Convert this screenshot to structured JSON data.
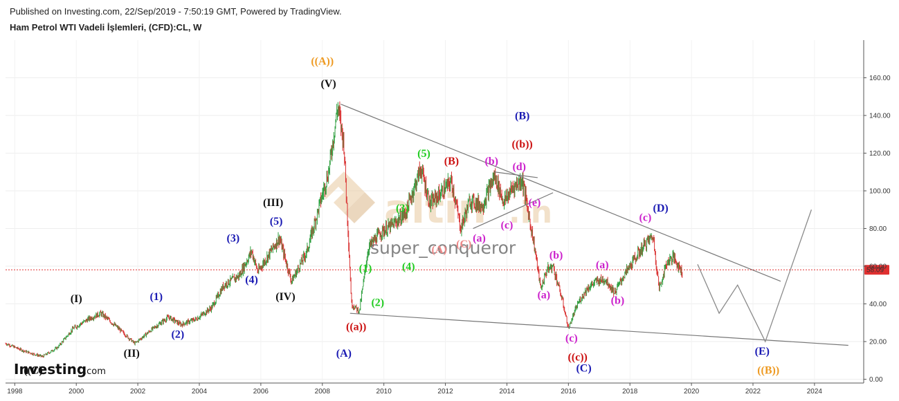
{
  "header": {
    "published": "Published on Investing.com, 22/Sep/2019 - 7:50:19 GMT, Powered by TradingView.",
    "symbol": "Ham Petrol WTI Vadeli İşlemleri, (CFD):CL, W"
  },
  "brand": {
    "investing": "Investing",
    "investing_suffix": ".com",
    "watermark_main": "altin",
    "watermark_suffix": ".in",
    "author": "super_conqueror"
  },
  "colors": {
    "candle_up": "#2e9e3e",
    "candle_down": "#d93030",
    "price_line": "#e03030",
    "trend_line": "#777777",
    "forecast_line": "#8a8a8a",
    "watermark": "#e8c9a0"
  },
  "chart_data": {
    "type": "line",
    "x_axis": {
      "ticks": [
        "1998",
        "2000",
        "2002",
        "2004",
        "2006",
        "2008",
        "2010",
        "2012",
        "2014",
        "2016",
        "2018",
        "2020",
        "2022",
        "2024"
      ],
      "range": [
        1997.7,
        2025.6
      ]
    },
    "y_axis": {
      "ticks": [
        "160.00",
        "140.00",
        "120.00",
        "100.00",
        "80.00",
        "60.00",
        "40.00",
        "20.00",
        "0.00"
      ],
      "range": [
        -2,
        180
      ],
      "position": "right"
    },
    "last_price": "58.09",
    "series": [
      {
        "x": [
          1997.7,
          1998.3,
          1998.9,
          1999.4,
          1999.9,
          2000.4,
          2000.8,
          2001.3,
          2001.9,
          2002.5,
          2003.0,
          2003.4,
          2003.9,
          2004.4,
          2004.8,
          2005.3,
          2005.7,
          2005.9,
          2006.6,
          2007.0,
          2007.5,
          2007.9,
          2008.2,
          2008.5,
          2008.7,
          2008.95,
          2009.2,
          2009.5,
          2009.9,
          2010.3,
          2010.7,
          2011.2,
          2011.5,
          2011.8,
          2012.2,
          2012.5,
          2012.8,
          2013.2,
          2013.6,
          2013.9,
          2014.2,
          2014.5,
          2014.9,
          2015.1,
          2015.3,
          2015.5,
          2015.8,
          2016.0,
          2016.3,
          2016.6,
          2016.9,
          2017.2,
          2017.5,
          2017.8,
          2018.2,
          2018.5,
          2018.75,
          2018.95,
          2019.2,
          2019.4,
          2019.7
        ],
        "y": [
          19,
          15,
          12,
          17,
          27,
          32,
          35,
          28,
          19,
          27,
          33,
          29,
          32,
          38,
          50,
          55,
          68,
          57,
          75,
          52,
          68,
          92,
          110,
          145,
          125,
          40,
          36,
          70,
          78,
          82,
          88,
          112,
          93,
          98,
          105,
          80,
          95,
          92,
          108,
          94,
          102,
          106,
          70,
          48,
          58,
          60,
          42,
          27,
          40,
          48,
          52,
          53,
          46,
          55,
          65,
          72,
          76,
          48,
          62,
          65,
          57
        ]
      }
    ],
    "forecast": {
      "x": [
        2020.2,
        2020.9,
        2021.5,
        2022.4,
        2023.9
      ],
      "y": [
        61,
        35,
        50,
        20,
        90
      ]
    },
    "trend_lines": [
      {
        "x": [
          2008.6,
          2022.9
        ],
        "y": [
          146,
          52
        ]
      },
      {
        "x": [
          2008.9,
          2025.1
        ],
        "y": [
          35,
          18
        ]
      },
      {
        "x": [
          2012.9,
          2015.5
        ],
        "y": [
          80,
          99
        ]
      },
      {
        "x": [
          2013.6,
          2015.0
        ],
        "y": [
          110,
          107
        ]
      }
    ],
    "annotations": [
      {
        "text": "((A))",
        "x": 2008.0,
        "y": 167,
        "color": "#ee9a22"
      },
      {
        "text": "(V)",
        "x": 2008.2,
        "y": 155,
        "color": "#111111"
      },
      {
        "text": "(III)",
        "x": 2006.4,
        "y": 92,
        "color": "#111111"
      },
      {
        "text": "(5)",
        "x": 2006.5,
        "y": 82,
        "color": "#1a1ab3"
      },
      {
        "text": "(3)",
        "x": 2005.1,
        "y": 73,
        "color": "#1a1ab3"
      },
      {
        "text": "(4)",
        "x": 2005.7,
        "y": 51,
        "color": "#1a1ab3"
      },
      {
        "text": "(IV)",
        "x": 2006.8,
        "y": 42,
        "color": "#111111"
      },
      {
        "text": "(I)",
        "x": 2000.0,
        "y": 41,
        "color": "#111111"
      },
      {
        "text": "(1)",
        "x": 2002.6,
        "y": 42,
        "color": "#1a1ab3"
      },
      {
        "text": "(2)",
        "x": 2003.3,
        "y": 22,
        "color": "#1a1ab3"
      },
      {
        "text": "(II)",
        "x": 2001.8,
        "y": 12,
        "color": "#111111"
      },
      {
        "text": "((C)",
        "x": 1998.6,
        "y": 3,
        "color": "#111111"
      },
      {
        "text": "(1)",
        "x": 2009.4,
        "y": 57,
        "color": "#22cc22"
      },
      {
        "text": "(2)",
        "x": 2009.8,
        "y": 39,
        "color": "#22cc22"
      },
      {
        "text": "(3)",
        "x": 2010.6,
        "y": 89,
        "color": "#22cc22"
      },
      {
        "text": "(4)",
        "x": 2010.8,
        "y": 58,
        "color": "#22cc22"
      },
      {
        "text": "(5)",
        "x": 2011.3,
        "y": 118,
        "color": "#22cc22"
      },
      {
        "text": "((a))",
        "x": 2009.1,
        "y": 26,
        "color": "#cc1111"
      },
      {
        "text": "(A)",
        "x": 2008.7,
        "y": 12,
        "color": "#1a1ab3"
      },
      {
        "text": "(B)",
        "x": 2012.2,
        "y": 114,
        "color": "#cc1111"
      },
      {
        "text": "(A)",
        "x": 2011.8,
        "y": 67,
        "color": "#ee8888"
      },
      {
        "text": "(C)",
        "x": 2012.6,
        "y": 70,
        "color": "#ee8888"
      },
      {
        "text": "(a)",
        "x": 2013.1,
        "y": 73,
        "color": "#cc22cc"
      },
      {
        "text": "(b)",
        "x": 2013.5,
        "y": 114,
        "color": "#cc22cc"
      },
      {
        "text": "(c)",
        "x": 2014.0,
        "y": 80,
        "color": "#cc22cc"
      },
      {
        "text": "(d)",
        "x": 2014.4,
        "y": 111,
        "color": "#cc22cc"
      },
      {
        "text": "(e)",
        "x": 2014.9,
        "y": 92,
        "color": "#cc22cc"
      },
      {
        "text": "(B)",
        "x": 2014.5,
        "y": 138,
        "color": "#1a1ab3"
      },
      {
        "text": "((b))",
        "x": 2014.5,
        "y": 123,
        "color": "#cc1111"
      },
      {
        "text": "(b)",
        "x": 2015.6,
        "y": 64,
        "color": "#cc22cc"
      },
      {
        "text": "(a)",
        "x": 2015.2,
        "y": 43,
        "color": "#cc22cc"
      },
      {
        "text": "(c)",
        "x": 2016.1,
        "y": 20,
        "color": "#cc22cc"
      },
      {
        "text": "((c))",
        "x": 2016.3,
        "y": 10,
        "color": "#cc1111"
      },
      {
        "text": "(C)",
        "x": 2016.5,
        "y": 4,
        "color": "#1a1ab3"
      },
      {
        "text": "(a)",
        "x": 2017.1,
        "y": 59,
        "color": "#cc22cc"
      },
      {
        "text": "(b)",
        "x": 2017.6,
        "y": 40,
        "color": "#cc22cc"
      },
      {
        "text": "(c)",
        "x": 2018.5,
        "y": 84,
        "color": "#cc22cc"
      },
      {
        "text": "(D)",
        "x": 2019.0,
        "y": 89,
        "color": "#1a1ab3"
      },
      {
        "text": "(E)",
        "x": 2022.3,
        "y": 13,
        "color": "#1a1ab3"
      },
      {
        "text": "((B))",
        "x": 2022.5,
        "y": 3,
        "color": "#ee9a22"
      }
    ]
  }
}
